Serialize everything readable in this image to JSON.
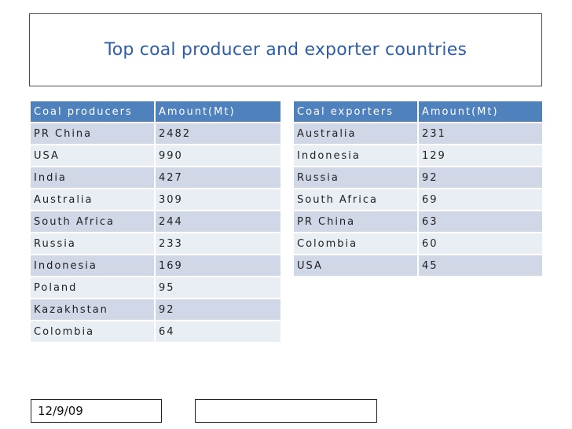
{
  "title": "Top coal producer and exporter countries",
  "producers": {
    "header": [
      "Coal producers",
      "Amount(Mt)"
    ],
    "rows": [
      [
        "PR China",
        "2482"
      ],
      [
        "USA",
        "990"
      ],
      [
        "India",
        "427"
      ],
      [
        "Australia",
        "309"
      ],
      [
        "South Africa",
        "244"
      ],
      [
        "Russia",
        "233"
      ],
      [
        "Indonesia",
        "169"
      ],
      [
        "Poland",
        "95"
      ],
      [
        "Kazakhstan",
        "92"
      ],
      [
        "Colombia",
        "64"
      ]
    ]
  },
  "exporters": {
    "header": [
      "Coal exporters",
      "Amount(Mt)"
    ],
    "rows": [
      [
        "Australia",
        "231"
      ],
      [
        "Indonesia",
        "129"
      ],
      [
        "Russia",
        "92"
      ],
      [
        "South Africa",
        "69"
      ],
      [
        "PR China",
        "63"
      ],
      [
        "Colombia",
        "60"
      ],
      [
        "USA",
        "45"
      ]
    ]
  },
  "footer": {
    "date": "12/9/09",
    "middle": ""
  },
  "colors": {
    "title": "#2f5ea3",
    "header_bg": "#4f81bd",
    "row_odd_bg": "#d0d8e8",
    "row_even_bg": "#e9edf4"
  }
}
